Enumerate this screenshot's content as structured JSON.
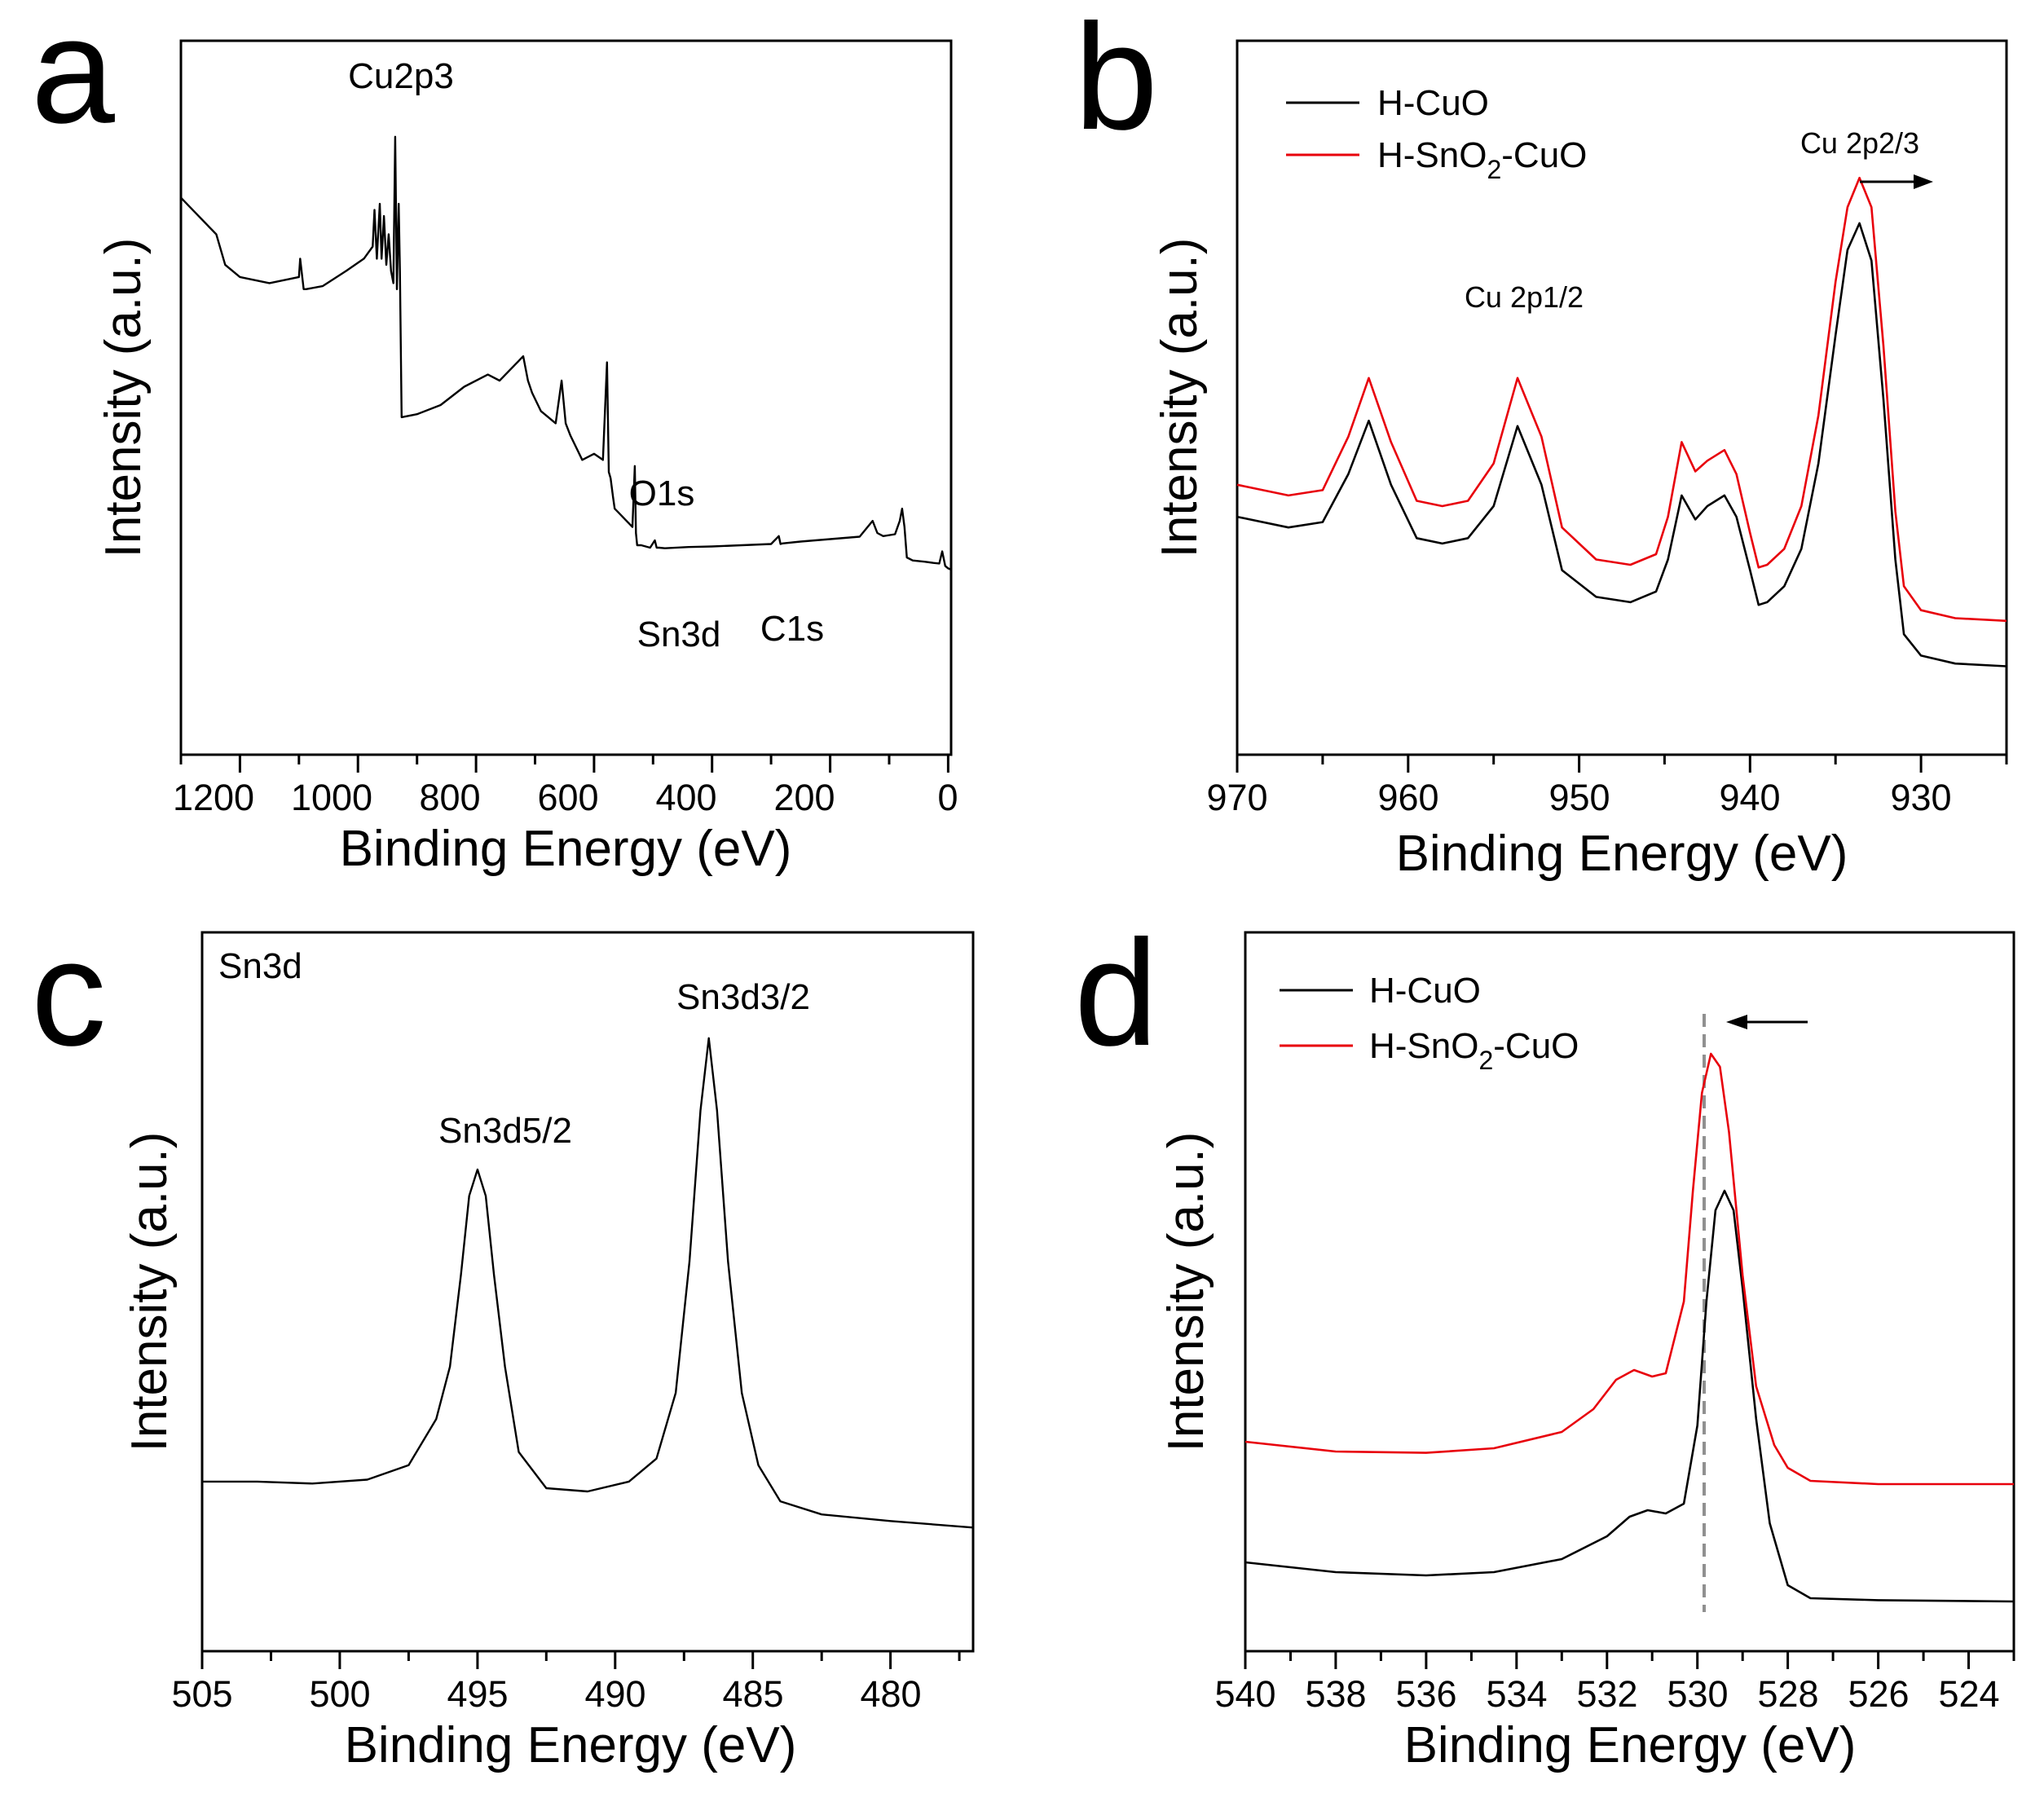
{
  "chart_data": [
    {
      "panel": "a",
      "type": "line",
      "xlabel": "Binding Energy (eV)",
      "ylabel": "Intensity (a.u.)",
      "xlim": [
        1300,
        -5
      ],
      "ylim": [
        0,
        100
      ],
      "x_reversed": true,
      "xticks": [
        1200,
        1000,
        800,
        600,
        400,
        200,
        0
      ],
      "xtick_labels": [
        "1200",
        "1000",
        "800",
        "600",
        "400",
        "200",
        "0"
      ],
      "annotations": [
        {
          "text": "Cu2p3",
          "x": 935
        },
        {
          "text": "O1s",
          "x": 531
        },
        {
          "text": "Sn3d",
          "x": 487
        },
        {
          "text": "C1s",
          "x": 285
        }
      ],
      "series": [
        {
          "name": "survey",
          "color": "#000000",
          "x": [
            1300,
            1270,
            1240,
            1225,
            1200,
            1150,
            1100,
            1098,
            1092,
            1088,
            1060,
            1020,
            990,
            975,
            972,
            968,
            963,
            960,
            956,
            952,
            948,
            944,
            940,
            937,
            934,
            931,
            929,
            926,
            900,
            860,
            820,
            780,
            760,
            740,
            720,
            712,
            705,
            690,
            665,
            655,
            648,
            640,
            620,
            600,
            585,
            578,
            575,
            572,
            568,
            565,
            555,
            545,
            535,
            531,
            529,
            527,
            520,
            505,
            497,
            494,
            490,
            480,
            440,
            400,
            300,
            287,
            284,
            281,
            250,
            200,
            150,
            128,
            120,
            110,
            90,
            82,
            78,
            74,
            70,
            60,
            40,
            25,
            15,
            10,
            5,
            0,
            -5
          ],
          "y": [
            82,
            79,
            76,
            71,
            69,
            68,
            69,
            72,
            67,
            67,
            67.5,
            70,
            72,
            74,
            80,
            72,
            81,
            72,
            79,
            71,
            76,
            70,
            68,
            92,
            67,
            81,
            70,
            46,
            46.5,
            48,
            51,
            53,
            52,
            54,
            56,
            52,
            50,
            47,
            45,
            52,
            45,
            43,
            39,
            40,
            39,
            55,
            37,
            36,
            33,
            31,
            30,
            29,
            28,
            38,
            27,
            25,
            25,
            24.6,
            25.8,
            24.6,
            24.6,
            24.5,
            24.7,
            24.8,
            25.2,
            26.5,
            25.2,
            25.3,
            25.6,
            26,
            26.4,
            29,
            27,
            26.5,
            26.8,
            29,
            31,
            28,
            23,
            22.5,
            22.3,
            22.1,
            22,
            24,
            21.6,
            21.2,
            21
          ]
        }
      ]
    },
    {
      "panel": "b",
      "type": "line",
      "xlabel": "Binding Energy (eV)",
      "ylabel": "Intensity (a.u.)",
      "xlim": [
        970,
        925
      ],
      "ylim": [
        0,
        100
      ],
      "x_reversed": true,
      "xticks": [
        970,
        960,
        950,
        940,
        930
      ],
      "xtick_labels": [
        "970",
        "960",
        "950",
        "940",
        "930"
      ],
      "legend": {
        "position": "top-left",
        "entries": [
          {
            "label": "H-CuO",
            "color": "#000000"
          },
          {
            "label_main": "H-SnO",
            "label_sub": "2",
            "label_tail": "-CuO",
            "color": "#e8000b"
          }
        ]
      },
      "annotations": [
        {
          "text": "Cu 2p1/2",
          "x": 953.5
        },
        {
          "text": "Cu 2p2/3",
          "x": 933.5
        },
        {
          "type": "arrow",
          "direction": "right",
          "from_x": 933.8,
          "to_x": 929.5
        }
      ],
      "series": [
        {
          "name": "H-CuO",
          "color": "#000000",
          "x": [
            970,
            967,
            965,
            963.5,
            962.3,
            961,
            959.5,
            958,
            956.5,
            955,
            953.6,
            952.2,
            951,
            949,
            947,
            945.5,
            944.8,
            944,
            943.2,
            942.5,
            941.5,
            940.8,
            940,
            939.5,
            939,
            938,
            937,
            936,
            935,
            934.3,
            933.6,
            932.9,
            932.2,
            931.5,
            931,
            930,
            928,
            925
          ],
          "y": [
            38,
            36,
            37,
            46,
            56,
            44,
            34,
            33,
            34,
            40,
            55,
            44,
            28,
            23,
            22,
            24,
            30,
            42,
            37.5,
            40,
            42,
            38,
            28,
            21.5,
            22,
            25,
            32,
            48,
            72,
            88,
            93,
            86,
            60,
            30,
            16,
            12,
            10.5,
            10
          ]
        },
        {
          "name": "H-SnO2-CuO",
          "color": "#e8000b",
          "x": [
            970,
            967,
            965,
            963.5,
            962.3,
            961,
            959.5,
            958,
            956.5,
            955,
            953.6,
            952.2,
            951,
            949,
            947,
            945.5,
            944.8,
            944,
            943.2,
            942.5,
            941.5,
            940.8,
            940,
            939.5,
            939,
            938,
            937,
            936,
            935,
            934.3,
            933.6,
            932.9,
            932.2,
            931.5,
            931,
            930,
            928,
            925
          ],
          "y": [
            44,
            42,
            43,
            53,
            64,
            52,
            41,
            40,
            41,
            48,
            64,
            53,
            36,
            30,
            29,
            31,
            38,
            52,
            46.5,
            48.5,
            50.5,
            46,
            35,
            28.5,
            29,
            32,
            40,
            57,
            82,
            96,
            101.5,
            96,
            70,
            39,
            25,
            20.5,
            19,
            18.5
          ]
        }
      ]
    },
    {
      "panel": "c",
      "type": "line",
      "xlabel": "Binding Energy (eV)",
      "ylabel": "Intensity (a.u.)",
      "xlim": [
        505,
        477
      ],
      "ylim": [
        0,
        100
      ],
      "x_reversed": true,
      "xticks": [
        505,
        500,
        495,
        490,
        485,
        480
      ],
      "xtick_labels": [
        "505",
        "500",
        "495",
        "490",
        "485",
        "480"
      ],
      "annotations": [
        {
          "text": "Sn3d",
          "position": "top-left"
        },
        {
          "text": "Sn3d5/2",
          "x": 495
        },
        {
          "text": "Sn3d3/2",
          "x": 486.6
        }
      ],
      "series": [
        {
          "name": "Sn3d",
          "color": "#000000",
          "x": [
            505,
            503,
            501,
            499,
            497.5,
            496.5,
            496,
            495.6,
            495.3,
            495,
            494.7,
            494.4,
            494,
            493.5,
            492.5,
            491,
            489.5,
            488.5,
            487.8,
            487.3,
            486.9,
            486.6,
            486.3,
            485.9,
            485.4,
            484.8,
            484,
            482.5,
            480,
            477
          ],
          "y": [
            18.5,
            18.5,
            18.2,
            18.8,
            21,
            28,
            36,
            50,
            62,
            66,
            62,
            50,
            36,
            23,
            17.5,
            17,
            18.5,
            22,
            32,
            52,
            75,
            86,
            75,
            52,
            32,
            21,
            15.5,
            13.5,
            12.5,
            11.5
          ]
        }
      ]
    },
    {
      "panel": "d",
      "type": "line",
      "xlabel": "Binding Energy (eV)",
      "ylabel": "Intensity (a.u.)",
      "xlim": [
        540,
        523
      ],
      "ylim": [
        0,
        100
      ],
      "x_reversed": true,
      "xticks": [
        540,
        538,
        536,
        534,
        532,
        530,
        528,
        526,
        524
      ],
      "xtick_labels": [
        "540",
        "538",
        "536",
        "534",
        "532",
        "530",
        "528",
        "526",
        "524"
      ],
      "legend": {
        "position": "top-left",
        "entries": [
          {
            "label": "H-CuO",
            "color": "#000000"
          },
          {
            "label_main": "H-SnO",
            "label_sub": "2",
            "label_tail": "-CuO",
            "color": "#e8000b"
          }
        ]
      },
      "annotations": [
        {
          "type": "dashed-line",
          "x": 529.85,
          "color": "#909090"
        },
        {
          "type": "arrow",
          "direction": "left",
          "from_x": 528.2,
          "to_x": 529.6
        }
      ],
      "series": [
        {
          "name": "H-CuO",
          "color": "#000000",
          "x": [
            540,
            538,
            536,
            534.5,
            533,
            532,
            531.5,
            531.1,
            530.7,
            530.3,
            530,
            529.8,
            529.6,
            529.4,
            529.2,
            529,
            528.7,
            528.4,
            528,
            527.5,
            526,
            523
          ],
          "y": [
            8,
            6.5,
            6,
            6.5,
            8.5,
            12,
            15,
            16,
            15.5,
            17,
            29,
            48,
            62,
            65,
            62,
            50,
            30,
            14,
            4.5,
            2.5,
            2.2,
            2
          ]
        },
        {
          "name": "H-SnO2-CuO",
          "color": "#e8000b",
          "x": [
            540,
            538,
            536,
            534.5,
            533,
            532.3,
            531.8,
            531.4,
            531,
            530.7,
            530.3,
            530.1,
            529.9,
            529.7,
            529.5,
            529.3,
            529,
            528.7,
            528.3,
            528,
            527.5,
            526,
            523
          ],
          "y": [
            26.5,
            25,
            24.8,
            25.5,
            28,
            31.5,
            36,
            37.5,
            36.5,
            37,
            48,
            65,
            80,
            86,
            84,
            74,
            52,
            35,
            26,
            22.5,
            20.5,
            20,
            20
          ]
        }
      ]
    }
  ]
}
